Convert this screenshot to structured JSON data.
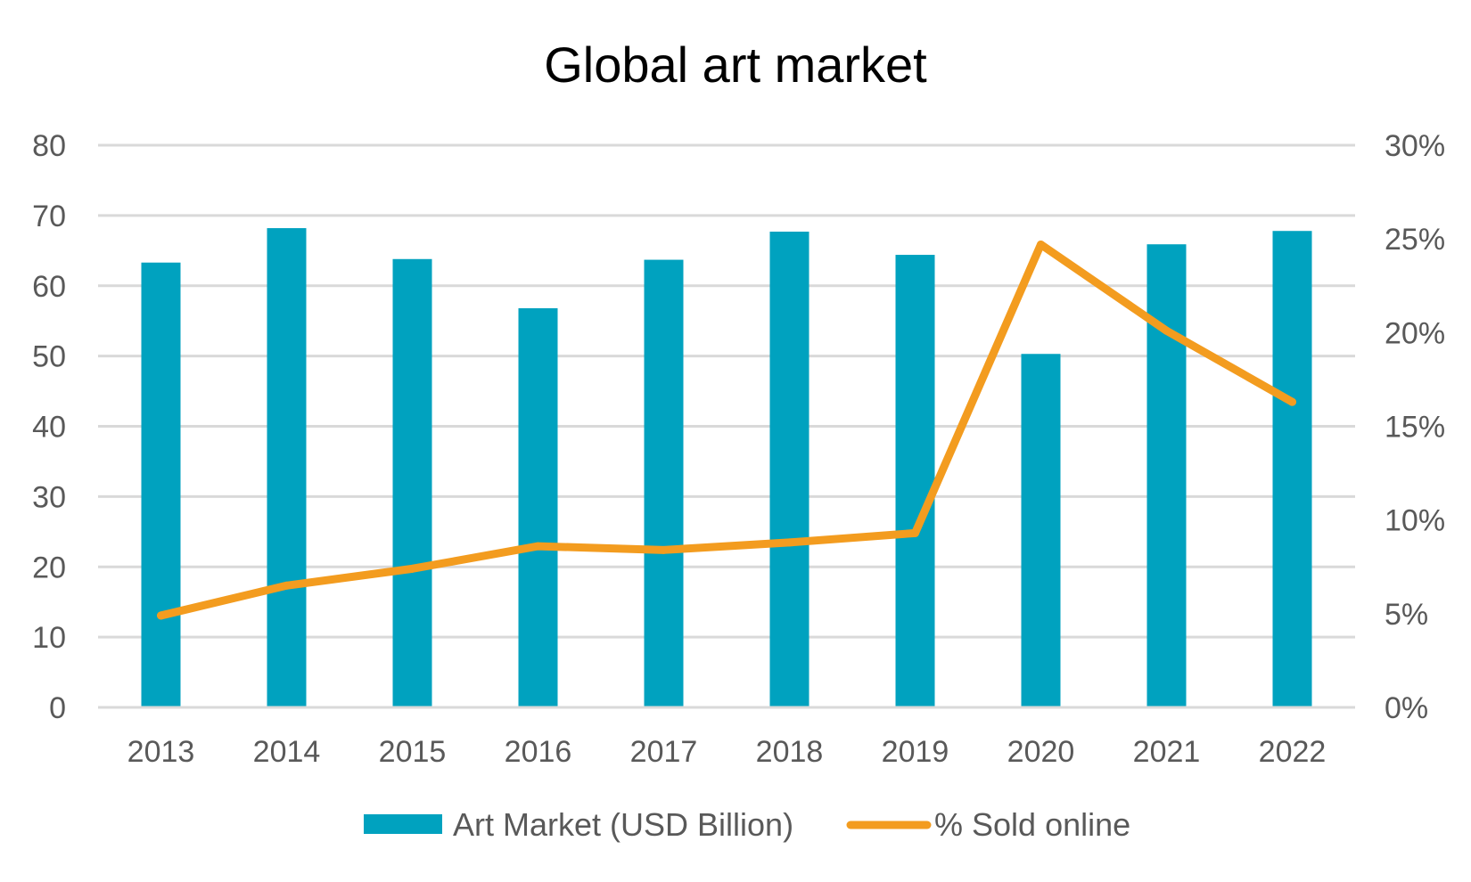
{
  "chart_data": {
    "type": "bar",
    "title": "Global art market",
    "categories": [
      "2013",
      "2014",
      "2015",
      "2016",
      "2017",
      "2018",
      "2019",
      "2020",
      "2021",
      "2022"
    ],
    "series": [
      {
        "name": "Art Market (USD Billion)",
        "type": "bar",
        "axis": "left",
        "color": "#00a2bf",
        "values": [
          63.3,
          68.2,
          63.8,
          56.8,
          63.7,
          67.7,
          64.4,
          50.3,
          65.9,
          67.8
        ]
      },
      {
        "name": "% Sold online",
        "type": "line",
        "axis": "right",
        "color": "#f39c1f",
        "values": [
          4.9,
          6.5,
          7.4,
          8.6,
          8.4,
          8.8,
          9.3,
          24.7,
          20.1,
          16.3
        ]
      }
    ],
    "y_left": {
      "min": 0,
      "max": 80,
      "ticks": [
        "0",
        "10",
        "20",
        "30",
        "40",
        "50",
        "60",
        "70",
        "80"
      ]
    },
    "y_right": {
      "min": 0,
      "max": 30,
      "ticks": [
        "0%",
        "5%",
        "10%",
        "15%",
        "20%",
        "25%",
        "30%"
      ]
    },
    "grid": true,
    "legend_position": "bottom",
    "colors": {
      "grid": "#d9d9d9",
      "tick_text": "#595959",
      "title_text": "#000000"
    }
  }
}
